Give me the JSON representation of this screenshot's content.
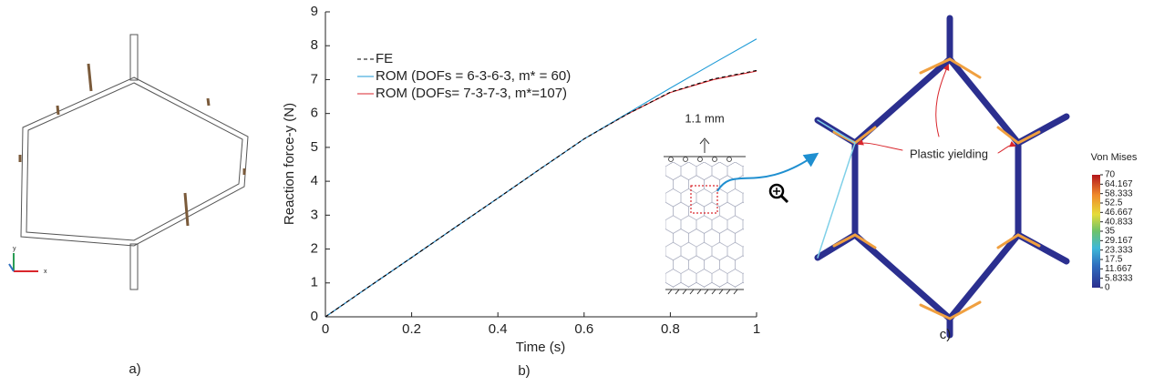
{
  "chart_data": {
    "type": "line",
    "xlabel": "Time (s)",
    "ylabel": "Reaction force-y (N)",
    "x": [
      0,
      0.1,
      0.2,
      0.3,
      0.4,
      0.5,
      0.6,
      0.7,
      0.8,
      0.9,
      1.0
    ],
    "series": [
      {
        "name": "FE",
        "color": "#000000",
        "linestyle": "dashed",
        "values": [
          0,
          0.88,
          1.75,
          2.63,
          3.5,
          4.38,
          5.25,
          5.98,
          6.63,
          7.02,
          7.27
        ]
      },
      {
        "name": "ROM (DOFs = 6-3-6-3, m* = 60)",
        "color": "#1f9bd7",
        "linestyle": "solid",
        "values": [
          0,
          0.88,
          1.75,
          2.63,
          3.5,
          4.38,
          5.25,
          6.0,
          6.75,
          7.48,
          8.2
        ]
      },
      {
        "name": "ROM (DOFs=  7-3-7-3, m*=107)",
        "color": "#d9262c",
        "linestyle": "solid",
        "values": [
          0,
          0.88,
          1.75,
          2.63,
          3.5,
          4.38,
          5.25,
          5.98,
          6.62,
          7.0,
          7.25
        ]
      }
    ],
    "xlim": [
      0,
      1
    ],
    "ylim": [
      0,
      9
    ],
    "xticks": [
      0,
      0.2,
      0.4,
      0.6,
      0.8,
      1
    ],
    "yticks": [
      0,
      1,
      2,
      3,
      4,
      5,
      6,
      7,
      8,
      9
    ],
    "legend": "upper-left"
  },
  "panel_labels": [
    "a)",
    "b)",
    "c)"
  ],
  "panel_a": {
    "axis_labels": [
      "y",
      "x"
    ]
  },
  "inset": {
    "annotation": "1.1 mm"
  },
  "panel_c": {
    "annotation": "Plastic yielding",
    "colorbar": {
      "title": "Von Mises",
      "lim": [
        0,
        70
      ],
      "ticks": [
        70,
        64.167,
        58.333,
        52.5,
        46.667,
        40.833,
        35,
        29.167,
        23.333,
        17.5,
        11.667,
        5.8333,
        0
      ]
    }
  }
}
